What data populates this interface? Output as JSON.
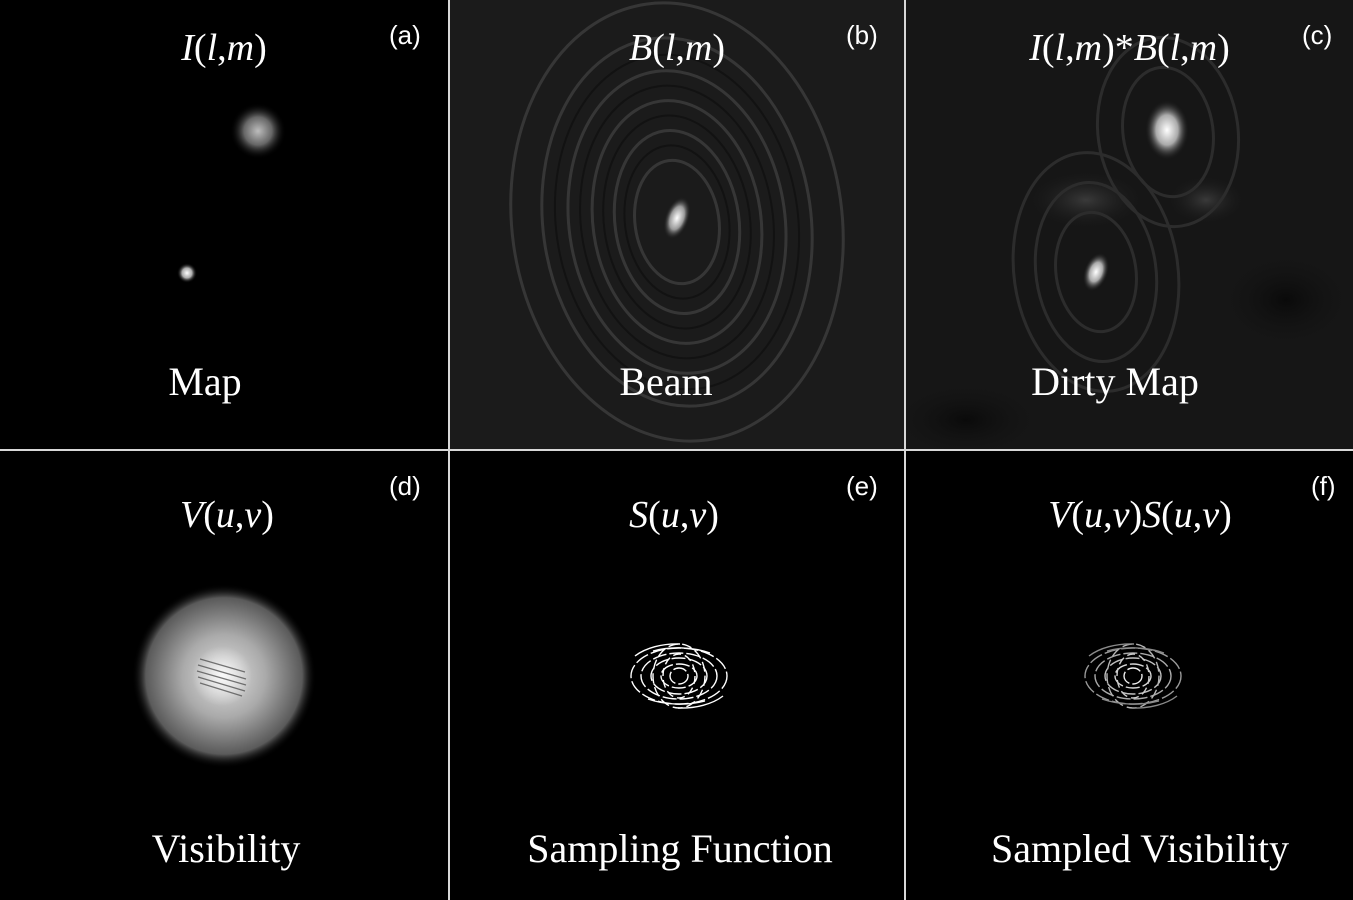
{
  "panels": {
    "a": {
      "tag": "(a)",
      "caption": "Map"
    },
    "b": {
      "tag": "(b)",
      "caption": "Beam"
    },
    "c": {
      "tag": "(c)",
      "caption": "Dirty Map"
    },
    "d": {
      "tag": "(d)",
      "caption": "Visibility"
    },
    "e": {
      "tag": "(e)",
      "caption": "Sampling Function"
    },
    "f": {
      "tag": "(f)",
      "caption": "Sampled Visibility"
    }
  },
  "formulas": {
    "a": "I(l,m)",
    "b": "B(l,m)",
    "c": "I(l,m)*B(l,m)",
    "d": "V(u,v)",
    "e": "S(u,v)",
    "f": "V(u,v)S(u,v)"
  }
}
